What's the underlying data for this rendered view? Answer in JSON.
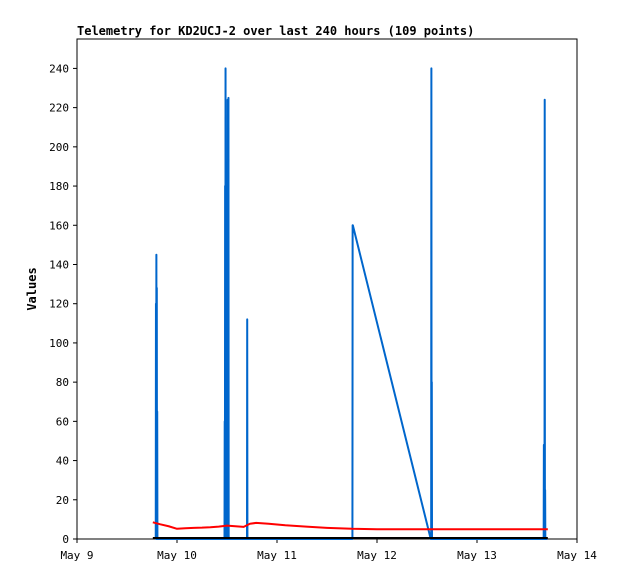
{
  "chart_data": {
    "type": "line",
    "title": "Telemetry for KD2UCJ-2 over last 240 hours (109 points)",
    "xlabel": "",
    "ylabel": "Values",
    "x_tick_labels": [
      "May 9",
      "May 10",
      "May 11",
      "May 12",
      "May 13",
      "May 14"
    ],
    "x_ticks_hours": [
      0,
      24,
      48,
      72,
      96,
      120
    ],
    "xlim_hours": [
      0,
      120
    ],
    "y_ticks": [
      0,
      20,
      40,
      60,
      80,
      100,
      120,
      140,
      160,
      180,
      200,
      220,
      240
    ],
    "ylim": [
      0,
      255
    ],
    "grid": false,
    "legend": "none",
    "series": [
      {
        "color": "#0066cc",
        "x": [
          18.9,
          18.95,
          19.0,
          19.05,
          19.1,
          19.15,
          19.2,
          19.25,
          19.3,
          35.4,
          35.45,
          35.5,
          35.55,
          35.6,
          35.65,
          35.7,
          35.75,
          35.8,
          35.85,
          35.9,
          35.95,
          36.0,
          36.05,
          36.1,
          36.15,
          36.2,
          36.25,
          36.3,
          36.35,
          36.4,
          36.45,
          40.8,
          40.85,
          40.9,
          66.1,
          66.15,
          66.2,
          84.9,
          85.0,
          85.05,
          85.1,
          85.15,
          85.2,
          85.25,
          85.3,
          85.35,
          112.0,
          112.05,
          112.1,
          112.15,
          112.2,
          112.25,
          112.3,
          112.35,
          112.4,
          112.45,
          112.5,
          112.55,
          112.6,
          112.65,
          112.7,
          112.75,
          112.8,
          112.85
        ],
        "values": [
          0,
          120,
          0,
          145,
          0,
          128,
          0,
          65,
          0,
          0,
          60,
          0,
          180,
          0,
          240,
          0,
          192,
          0,
          97,
          0,
          48,
          0,
          96,
          0,
          224,
          0,
          48,
          0,
          225,
          0,
          0,
          0,
          112,
          0,
          0,
          160,
          160,
          0,
          0,
          240,
          0,
          80,
          0,
          0,
          0,
          0,
          0,
          48,
          0,
          25,
          0,
          224,
          0,
          25,
          0,
          0,
          0,
          0,
          0,
          0,
          0,
          0,
          0,
          0
        ]
      },
      {
        "color": "#ff0000",
        "x": [
          18.2,
          20.0,
          22.0,
          24.0,
          26.0,
          28.0,
          30.0,
          32.0,
          34.0,
          36.0,
          38.0,
          40.0,
          41.5,
          43.0,
          46.0,
          50.0,
          55.0,
          60.0,
          66.0,
          72.0,
          80.0,
          90.0,
          100.0,
          110.0,
          113.0
        ],
        "values": [
          8.5,
          7.5,
          6.5,
          5.2,
          5.5,
          5.7,
          5.8,
          6.0,
          6.3,
          6.8,
          6.5,
          6.2,
          7.8,
          8.2,
          7.8,
          7.0,
          6.3,
          5.7,
          5.2,
          5.0,
          5.0,
          5.0,
          5.0,
          5.0,
          5.0
        ]
      },
      {
        "color": "#000000",
        "x": [
          18.2,
          40.0,
          60.0,
          85.0,
          100.0,
          113.0
        ],
        "values": [
          0.5,
          0.5,
          0.5,
          0.5,
          0.5,
          0.5
        ]
      }
    ]
  }
}
